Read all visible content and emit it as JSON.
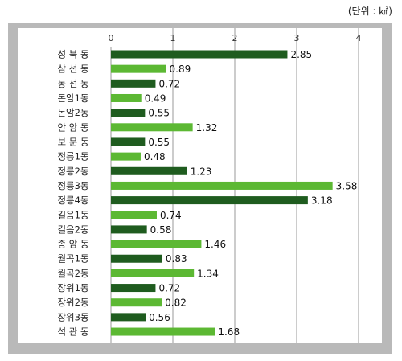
{
  "unit": "(단위 : ㎢)",
  "chart_data": {
    "type": "bar",
    "orientation": "horizontal",
    "categories": [
      "성 북 동",
      "삼 선 동",
      "동 선 동",
      "돈암1동",
      "돈암2동",
      "안 암 동",
      "보 문 동",
      "정릉1동",
      "정릉2동",
      "정릉3동",
      "정릉4동",
      "길음1동",
      "길음2동",
      "종 암 동",
      "월곡1동",
      "월곡2동",
      "장위1동",
      "장위2동",
      "장위3동",
      "석 관 동"
    ],
    "values": [
      2.85,
      0.89,
      0.72,
      0.49,
      0.55,
      1.32,
      0.55,
      0.48,
      1.23,
      3.58,
      3.18,
      0.74,
      0.58,
      1.46,
      0.83,
      1.34,
      0.72,
      0.82,
      0.56,
      1.68
    ],
    "value_labels": [
      "2.85",
      "0.89",
      "0.72",
      "0.49",
      "0.55",
      "1.32",
      "0.55",
      "0.48",
      "1.23",
      "3.58",
      "3.18",
      "0.74",
      "0.58",
      "1.46",
      "0.83",
      "1.34",
      "0.72",
      "0.82",
      "0.56",
      "1.68"
    ],
    "bar_colors": [
      "#1f5c1f",
      "#5cb833",
      "#1f5c1f",
      "#5cb833",
      "#1f5c1f",
      "#5cb833",
      "#1f5c1f",
      "#5cb833",
      "#1f5c1f",
      "#5cb833",
      "#1f5c1f",
      "#5cb833",
      "#1f5c1f",
      "#5cb833",
      "#1f5c1f",
      "#5cb833",
      "#1f5c1f",
      "#5cb833",
      "#1f5c1f",
      "#5cb833"
    ],
    "xlim": [
      0,
      4
    ],
    "xticks": [
      "0",
      "1",
      "2",
      "3",
      "4"
    ],
    "grid": true,
    "grid_color": "#9a9a9a",
    "frame_color": "#b9b9b9"
  }
}
